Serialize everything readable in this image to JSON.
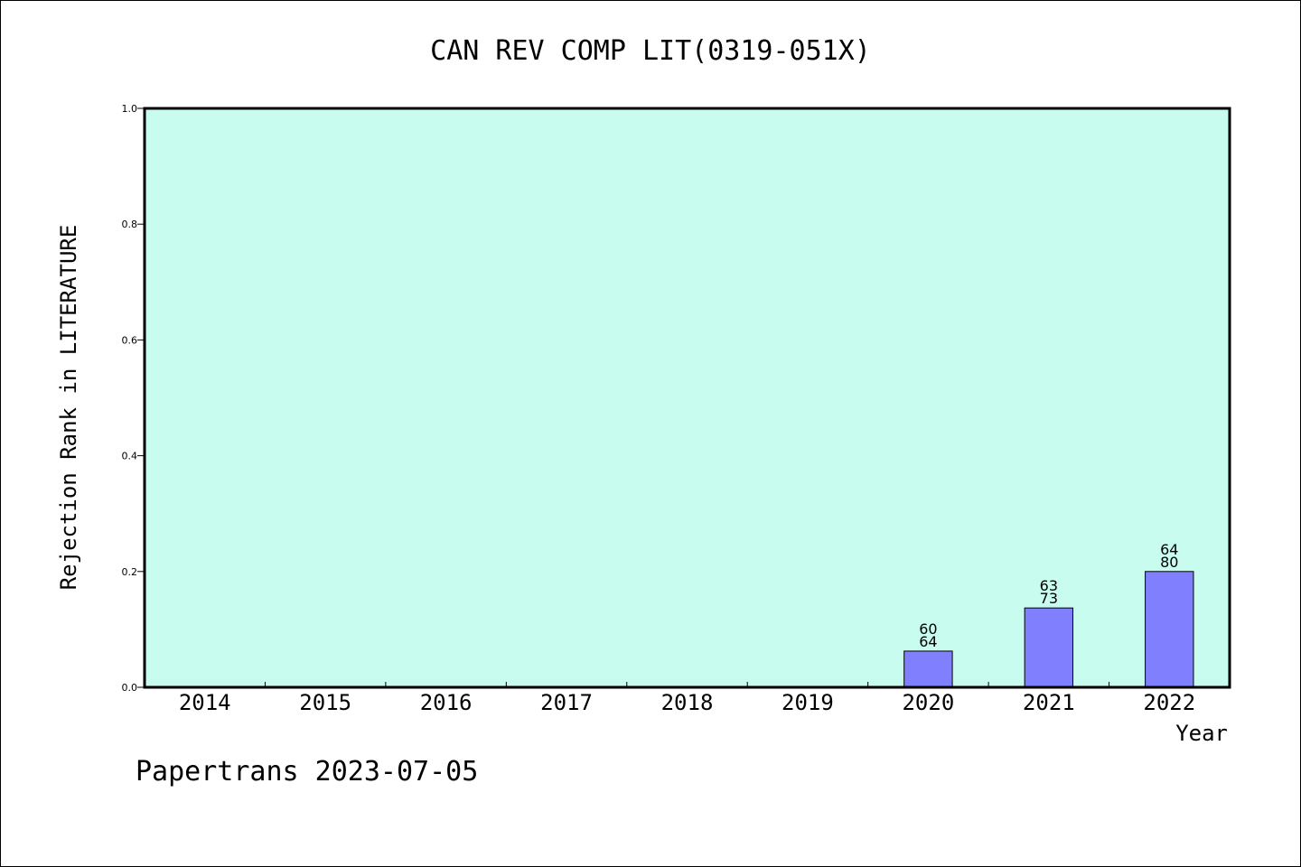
{
  "chart_data": {
    "type": "bar",
    "title": "CAN REV COMP LIT(0319-051X)",
    "xlabel": "Year",
    "ylabel": "Rejection Rank in LITERATURE",
    "ylim": [
      0,
      1.0
    ],
    "yticks": [
      "0.0",
      "0.2",
      "0.4",
      "0.6",
      "0.8",
      "1.0"
    ],
    "categories": [
      "2014",
      "2015",
      "2016",
      "2017",
      "2018",
      "2019",
      "2020",
      "2021",
      "2022"
    ],
    "values": [
      0,
      0,
      0,
      0,
      0,
      0,
      0.0625,
      0.137,
      0.2
    ],
    "data_labels": [
      [
        "",
        ""
      ],
      [
        "",
        ""
      ],
      [
        "",
        ""
      ],
      [
        "",
        ""
      ],
      [
        "",
        ""
      ],
      [
        "",
        ""
      ],
      [
        "60",
        "64"
      ],
      [
        "63",
        "73"
      ],
      [
        "64",
        "80"
      ]
    ],
    "grid": false,
    "legend": "none",
    "colors": {
      "plot_background": "#c8fcee",
      "bar_fill": "#8080ff",
      "bar_stroke": "#000000"
    }
  },
  "footer": {
    "credit": "Papertrans 2023-07-05"
  }
}
